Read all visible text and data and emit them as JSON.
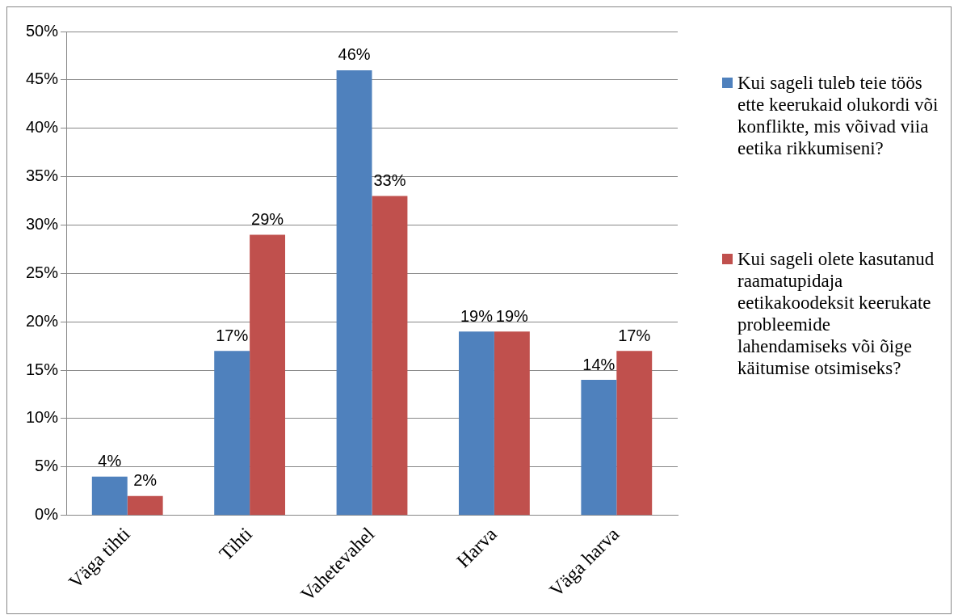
{
  "chart_data": {
    "type": "bar",
    "categories": [
      "Väga tihti",
      "Tihti",
      "Vahetevahel",
      "Harva",
      "Väga harva"
    ],
    "series": [
      {
        "name": "Kui sageli tuleb teie töös ette keerukaid olukordi või konflikte, mis võivad viia eetika rikkumiseni?",
        "color": "#4f81bd",
        "values": [
          4,
          17,
          46,
          19,
          14
        ],
        "value_labels": [
          "4%",
          "17%",
          "46%",
          "19%",
          "14%"
        ]
      },
      {
        "name": "Kui sageli olete kasutanud raamatupidaja eetikakoodeksit keerukate probleemide lahendamiseks või õige käitumise otsimiseks?",
        "color": "#c0504d",
        "values": [
          2,
          29,
          33,
          19,
          17
        ],
        "value_labels": [
          "2%",
          "29%",
          "33%",
          "19%",
          "17%"
        ]
      }
    ],
    "ylim": [
      0,
      50
    ],
    "yticks": [
      {
        "value": 0,
        "label": "0%"
      },
      {
        "value": 5,
        "label": "5%"
      },
      {
        "value": 10,
        "label": "10%"
      },
      {
        "value": 15,
        "label": "15%"
      },
      {
        "value": 20,
        "label": "20%"
      },
      {
        "value": 25,
        "label": "25%"
      },
      {
        "value": 30,
        "label": "30%"
      },
      {
        "value": 35,
        "label": "35%"
      },
      {
        "value": 40,
        "label": "40%"
      },
      {
        "value": 45,
        "label": "45%"
      },
      {
        "value": 50,
        "label": "50%"
      }
    ],
    "grid": "y",
    "legend": "right"
  }
}
